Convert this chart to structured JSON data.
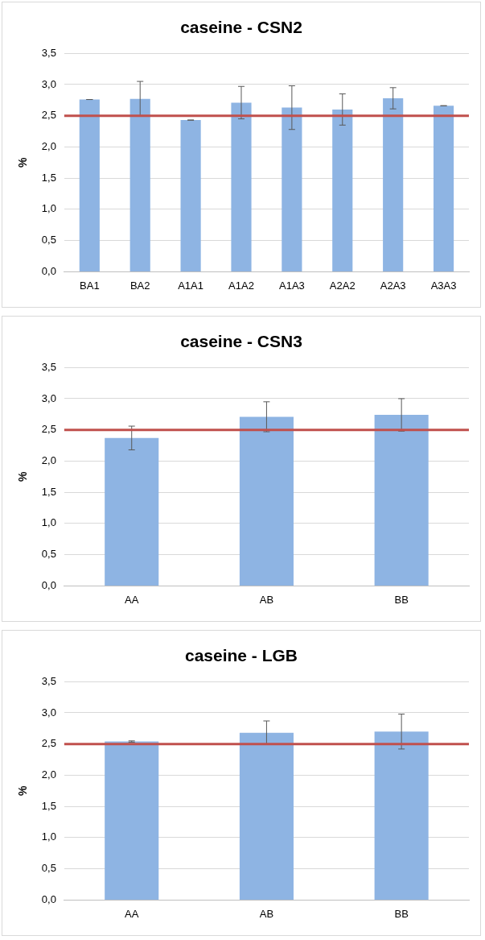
{
  "chart_data": [
    {
      "type": "bar",
      "title": "caseine - CSN2",
      "ylabel": "%",
      "categories": [
        "BA1",
        "BA2",
        "A1A1",
        "A1A2",
        "A1A3",
        "A2A2",
        "A2A3",
        "A3A3"
      ],
      "values": [
        2.76,
        2.77,
        2.43,
        2.71,
        2.63,
        2.6,
        2.78,
        2.66
      ],
      "errors": [
        0,
        0.28,
        0,
        0.26,
        0.35,
        0.25,
        0.17,
        0
      ],
      "color": "#8eb4e3",
      "ylim": [
        0,
        3.5
      ],
      "yticks": [
        {
          "value": 0,
          "label": "0,0"
        },
        {
          "value": 0.5,
          "label": "0,5"
        },
        {
          "value": 1,
          "label": "1,0"
        },
        {
          "value": 1.5,
          "label": "1,5"
        },
        {
          "value": 2,
          "label": "2,0"
        },
        {
          "value": 2.5,
          "label": "2,5"
        },
        {
          "value": 3,
          "label": "3,0"
        },
        {
          "value": 3.5,
          "label": "3,5"
        }
      ],
      "grid": "y",
      "legend": false,
      "ref_lines": [
        {
          "axis": "y",
          "value": 2.5,
          "color": "#c0504d"
        }
      ]
    },
    {
      "type": "bar",
      "title": "caseine - CSN3",
      "ylabel": "%",
      "categories": [
        "AA",
        "AB",
        "BB"
      ],
      "values": [
        2.37,
        2.71,
        2.74
      ],
      "errors": [
        0.19,
        0.24,
        0.26
      ],
      "color": "#8eb4e3",
      "ylim": [
        0,
        3.5
      ],
      "yticks": [
        {
          "value": 0,
          "label": "0,0"
        },
        {
          "value": 0.5,
          "label": "0,5"
        },
        {
          "value": 1,
          "label": "1,0"
        },
        {
          "value": 1.5,
          "label": "1,5"
        },
        {
          "value": 2,
          "label": "2,0"
        },
        {
          "value": 2.5,
          "label": "2,5"
        },
        {
          "value": 3,
          "label": "3,0"
        },
        {
          "value": 3.5,
          "label": "3,5"
        }
      ],
      "grid": "y",
      "legend": false,
      "ref_lines": [
        {
          "axis": "y",
          "value": 2.5,
          "color": "#c0504d"
        }
      ]
    },
    {
      "type": "bar",
      "title": "caseine - LGB",
      "ylabel": "%",
      "categories": [
        "AA",
        "AB",
        "BB"
      ],
      "values": [
        2.54,
        2.68,
        2.7
      ],
      "errors": [
        0.01,
        0.19,
        0.28
      ],
      "color": "#8eb4e3",
      "ylim": [
        0,
        3.5
      ],
      "yticks": [
        {
          "value": 0,
          "label": "0,0"
        },
        {
          "value": 0.5,
          "label": "0,5"
        },
        {
          "value": 1,
          "label": "1,0"
        },
        {
          "value": 1.5,
          "label": "1,5"
        },
        {
          "value": 2,
          "label": "2,0"
        },
        {
          "value": 2.5,
          "label": "2,5"
        },
        {
          "value": 3,
          "label": "3,0"
        },
        {
          "value": 3.5,
          "label": "3,5"
        }
      ],
      "grid": "y",
      "legend": false,
      "ref_lines": [
        {
          "axis": "y",
          "value": 2.5,
          "color": "#c0504d"
        }
      ]
    }
  ]
}
